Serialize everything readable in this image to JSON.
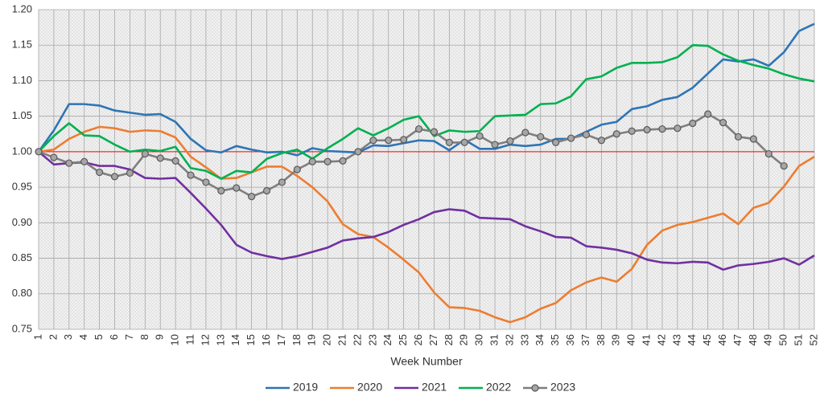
{
  "chart_data": {
    "type": "line",
    "x_label": "Week Number",
    "categories": [
      1,
      2,
      3,
      4,
      5,
      6,
      7,
      8,
      9,
      10,
      11,
      12,
      13,
      14,
      15,
      16,
      17,
      18,
      19,
      20,
      21,
      22,
      23,
      24,
      25,
      26,
      27,
      28,
      29,
      30,
      31,
      32,
      33,
      34,
      35,
      36,
      37,
      38,
      39,
      40,
      41,
      42,
      43,
      44,
      45,
      46,
      47,
      48,
      49,
      50,
      51,
      52
    ],
    "ylim": [
      0.75,
      1.2
    ],
    "yticks": [
      {
        "value": 0.75,
        "label": "0.75"
      },
      {
        "value": 0.8,
        "label": "0.80"
      },
      {
        "value": 0.85,
        "label": "0.85"
      },
      {
        "value": 0.9,
        "label": "0.90"
      },
      {
        "value": 0.95,
        "label": "0.95"
      },
      {
        "value": 1.0,
        "label": "1.00"
      },
      {
        "value": 1.05,
        "label": "1.05"
      },
      {
        "value": 1.1,
        "label": "1.10"
      },
      {
        "value": 1.15,
        "label": "1.15"
      },
      {
        "value": 1.2,
        "label": "1.20"
      }
    ],
    "grid": true,
    "reference_line": {
      "value": 1.0,
      "color": "#FF0000"
    },
    "legend": "bottom",
    "series": [
      {
        "name": "2019",
        "color": "#2E75B6",
        "marker": false,
        "values": [
          1.0,
          1.03,
          1.067,
          1.067,
          1.065,
          1.058,
          1.055,
          1.052,
          1.053,
          1.042,
          1.018,
          1.002,
          0.999,
          1.008,
          1.003,
          0.999,
          1.0,
          0.995,
          1.005,
          1.001,
          1.0,
          0.999,
          1.009,
          1.008,
          1.012,
          1.016,
          1.015,
          1.002,
          1.017,
          1.004,
          1.004,
          1.01,
          1.008,
          1.01,
          1.018,
          1.018,
          1.028,
          1.038,
          1.042,
          1.06,
          1.064,
          1.073,
          1.077,
          1.09,
          1.11,
          1.13,
          1.127,
          1.13,
          1.121,
          1.14,
          1.17,
          1.18
        ]
      },
      {
        "name": "2020",
        "color": "#ED7D31",
        "marker": false,
        "values": [
          1.0,
          1.003,
          1.018,
          1.028,
          1.035,
          1.033,
          1.028,
          1.03,
          1.029,
          1.02,
          0.993,
          0.978,
          0.962,
          0.963,
          0.971,
          0.979,
          0.979,
          0.966,
          0.95,
          0.93,
          0.898,
          0.884,
          0.88,
          0.865,
          0.848,
          0.83,
          0.802,
          0.781,
          0.78,
          0.776,
          0.767,
          0.76,
          0.767,
          0.779,
          0.787,
          0.805,
          0.816,
          0.823,
          0.817,
          0.835,
          0.869,
          0.889,
          0.897,
          0.901,
          0.907,
          0.913,
          0.898,
          0.921,
          0.928,
          0.951,
          0.98,
          0.993
        ]
      },
      {
        "name": "2021",
        "color": "#7030A0",
        "marker": false,
        "values": [
          1.0,
          0.982,
          0.984,
          0.985,
          0.98,
          0.98,
          0.975,
          0.963,
          0.962,
          0.963,
          0.942,
          0.92,
          0.897,
          0.869,
          0.858,
          0.853,
          0.849,
          0.853,
          0.859,
          0.865,
          0.875,
          0.878,
          0.88,
          0.887,
          0.897,
          0.905,
          0.915,
          0.919,
          0.917,
          0.907,
          0.906,
          0.905,
          0.895,
          0.888,
          0.88,
          0.879,
          0.867,
          0.865,
          0.862,
          0.857,
          0.848,
          0.844,
          0.843,
          0.845,
          0.844,
          0.834,
          0.84,
          0.842,
          0.845,
          0.85,
          0.841,
          0.854
        ]
      },
      {
        "name": "2022",
        "color": "#00B050",
        "marker": false,
        "values": [
          1.0,
          1.022,
          1.04,
          1.023,
          1.022,
          1.01,
          1.0,
          1.003,
          1.001,
          1.007,
          0.977,
          0.973,
          0.962,
          0.973,
          0.971,
          0.99,
          0.998,
          1.003,
          0.99,
          1.005,
          1.018,
          1.033,
          1.023,
          1.033,
          1.045,
          1.05,
          1.022,
          1.03,
          1.028,
          1.029,
          1.05,
          1.051,
          1.052,
          1.067,
          1.068,
          1.078,
          1.102,
          1.106,
          1.118,
          1.125,
          1.125,
          1.126,
          1.133,
          1.15,
          1.149,
          1.137,
          1.128,
          1.122,
          1.117,
          1.109,
          1.103,
          1.099
        ]
      },
      {
        "name": "2023",
        "color": "#7F7F7F",
        "marker": true,
        "values": [
          1.0,
          0.992,
          0.984,
          0.986,
          0.971,
          0.965,
          0.97,
          0.997,
          0.991,
          0.987,
          0.967,
          0.957,
          0.945,
          0.949,
          0.937,
          0.945,
          0.957,
          0.975,
          0.986,
          0.986,
          0.987,
          1.0,
          1.016,
          1.016,
          1.017,
          1.032,
          1.028,
          1.013,
          1.013,
          1.022,
          1.01,
          1.015,
          1.027,
          1.021,
          1.013,
          1.019,
          1.024,
          1.016,
          1.025,
          1.029,
          1.031,
          1.032,
          1.033,
          1.04,
          1.053,
          1.041,
          1.021,
          1.018,
          0.997,
          0.98,
          null,
          null
        ]
      }
    ]
  }
}
